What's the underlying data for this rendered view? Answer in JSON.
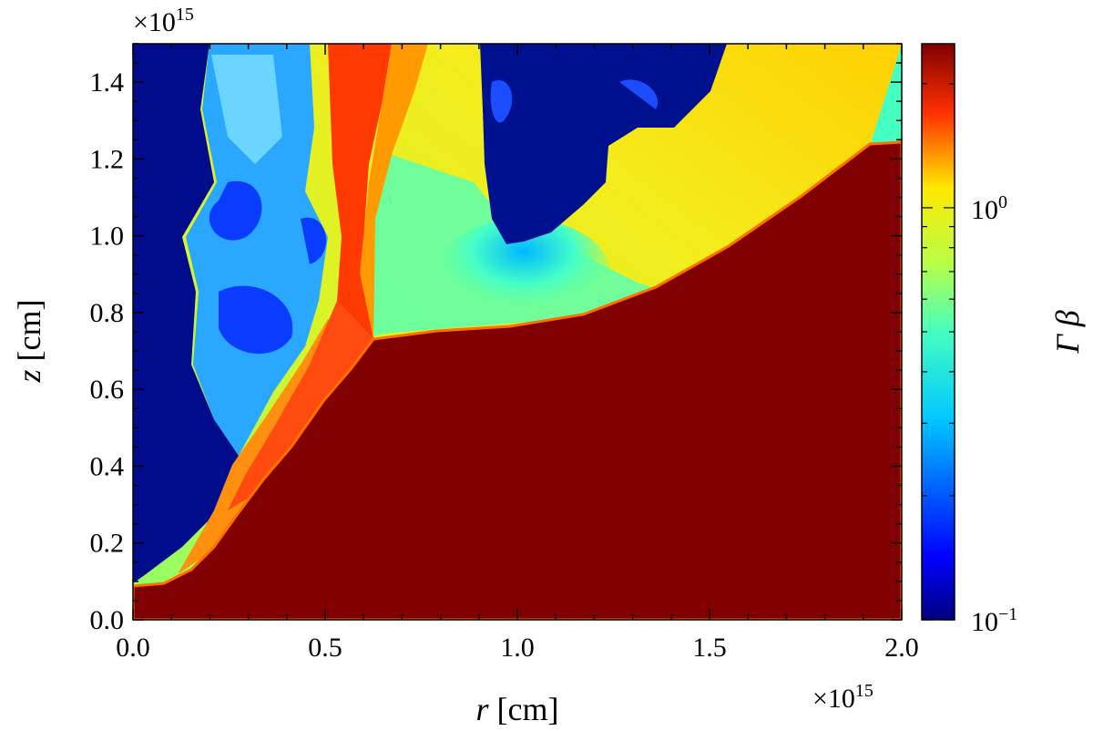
{
  "chart_data": {
    "type": "heatmap",
    "xlabel_var": "r",
    "xlabel_unit": "[cm]",
    "ylabel_var": "z",
    "ylabel_unit": "[cm]",
    "x_multiplier": "×10",
    "x_exponent": "15",
    "y_multiplier": "×10",
    "y_exponent": "15",
    "xlim": [
      0.0,
      2.0
    ],
    "ylim": [
      0.0,
      1.5
    ],
    "x_ticks": [
      "0.0",
      "0.5",
      "1.0",
      "1.5",
      "2.0"
    ],
    "y_ticks": [
      "0.0",
      "0.2",
      "0.4",
      "0.6",
      "0.8",
      "1.0",
      "1.2",
      "1.4"
    ],
    "colorbar": {
      "label": "Γ β",
      "scale": "log",
      "range": [
        0.1,
        2.5
      ],
      "colormap": "jet",
      "tick_labels": [
        {
          "base": "10",
          "exp": "0",
          "value": 1.0
        },
        {
          "base": "10",
          "exp": "−1",
          "value": 0.1
        }
      ]
    },
    "regions": [
      {
        "name": "dense interior (max Γβ)",
        "value": "max",
        "boundary": [
          [
            0.0,
            0.09
          ],
          [
            0.09,
            0.1
          ],
          [
            0.18,
            0.2
          ],
          [
            0.3,
            0.4
          ],
          [
            0.4,
            0.52
          ],
          [
            0.5,
            0.62
          ],
          [
            0.62,
            0.73
          ],
          [
            0.8,
            0.76
          ],
          [
            1.0,
            0.77
          ],
          [
            1.2,
            0.82
          ],
          [
            1.4,
            0.92
          ],
          [
            1.6,
            1.04
          ],
          [
            1.8,
            1.17
          ],
          [
            1.93,
            1.25
          ],
          [
            2.0,
            1.25
          ],
          [
            2.0,
            0.0
          ],
          [
            0.0,
            0.0
          ]
        ]
      },
      {
        "name": "low-velocity blob",
        "value": "min",
        "boundary": [
          [
            0.93,
            1.5
          ],
          [
            0.92,
            1.3
          ],
          [
            0.95,
            1.05
          ],
          [
            1.0,
            0.97
          ],
          [
            1.05,
            1.0
          ],
          [
            1.1,
            1.05
          ],
          [
            1.22,
            1.15
          ],
          [
            1.32,
            1.3
          ],
          [
            1.38,
            1.4
          ],
          [
            1.45,
            1.45
          ],
          [
            1.5,
            1.5
          ]
        ]
      }
    ],
    "grid": false
  },
  "colors": {
    "dark_red": "#800000",
    "red": "#ff2a00",
    "orange": "#ff9a00",
    "yellow": "#f6ec1c",
    "green_yellow": "#b8ff46",
    "cyan": "#45ffc0",
    "light_blue": "#00c8ff",
    "blue": "#0048ff",
    "dark_blue": "#000080"
  }
}
